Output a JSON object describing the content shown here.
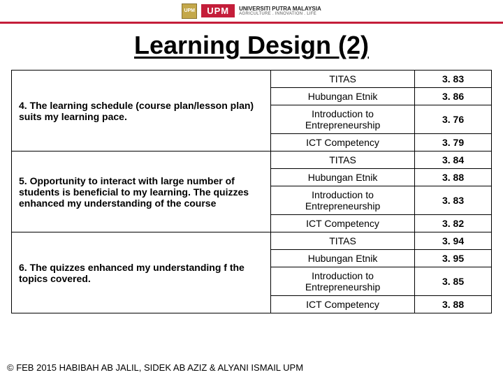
{
  "header": {
    "crest_text": "UPM",
    "upm_badge": "UPM",
    "university": "UNIVERSITI PUTRA MALAYSIA",
    "tagline": "AGRICULTURE . INNOVATION . LIFE"
  },
  "title": "Learning Design (2)",
  "table": {
    "colors": {
      "border": "#000000",
      "header_rule": "#c41e3a",
      "text": "#000000",
      "background": "#ffffff"
    },
    "groups": [
      {
        "item": "4.  The learning  schedule (course plan/lesson plan) suits my learning pace.",
        "rows": [
          {
            "course": "TITAS",
            "score": "3. 83"
          },
          {
            "course": "Hubungan Etnik",
            "score": "3. 86"
          },
          {
            "course": "Introduction to Entrepreneurship",
            "score": "3. 76"
          },
          {
            "course": "ICT Competency",
            "score": "3. 79"
          }
        ]
      },
      {
        "item": "5.  Opportunity to interact with large number of students  is beneficial to my learning. The quizzes enhanced my understanding  of the course",
        "rows": [
          {
            "course": "TITAS",
            "score": "3. 84"
          },
          {
            "course": "Hubungan Etnik",
            "score": "3. 88"
          },
          {
            "course": "Introduction to Entrepreneurship",
            "score": "3. 83"
          },
          {
            "course": "ICT Competency",
            "score": "3. 82"
          }
        ]
      },
      {
        "item": "6.   The quizzes  enhanced my understanding f the topics  covered.",
        "rows": [
          {
            "course": "TITAS",
            "score": "3. 94"
          },
          {
            "course": "Hubungan Etnik",
            "score": "3. 95"
          },
          {
            "course": "Introduction to Entrepreneurship",
            "score": "3. 85"
          },
          {
            "course": "ICT Competency",
            "score": "3. 88"
          }
        ]
      }
    ]
  },
  "footer": "© FEB 2015 HABIBAH AB JALIL, SIDEK AB AZIZ & ALYANI ISMAIL UPM"
}
